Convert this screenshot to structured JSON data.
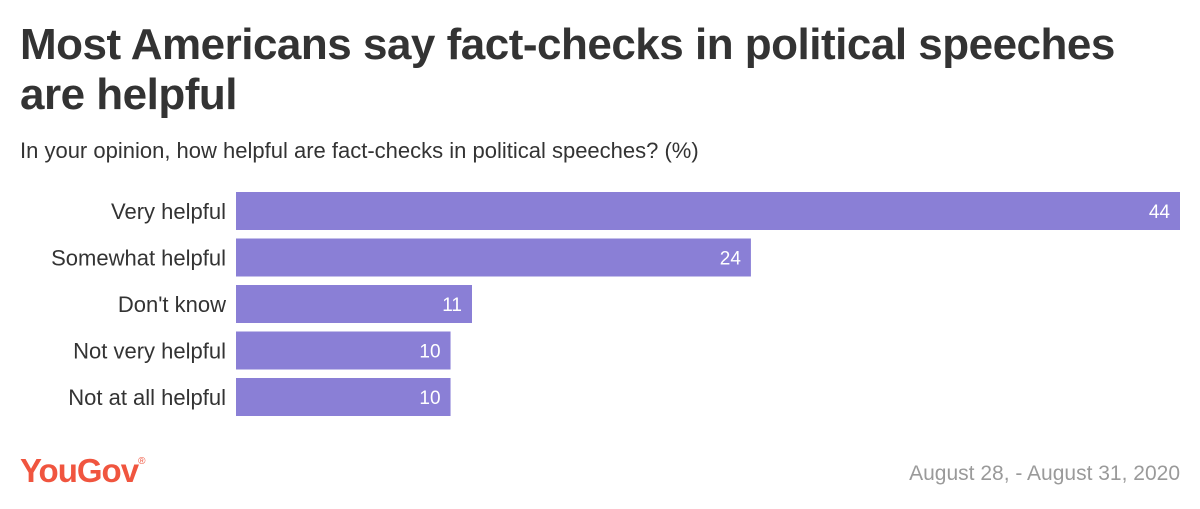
{
  "header": {
    "title": "Most Americans say fact-checks in political speeches are helpful",
    "subtitle": "In your opinion, how helpful are fact-checks in political speeches? (%)"
  },
  "footer": {
    "brand": "YouGov",
    "date": "August 28, - August 31, 2020"
  },
  "colors": {
    "bar": "#8a7fd6"
  },
  "chart_data": {
    "type": "bar",
    "orientation": "horizontal",
    "categories": [
      "Very helpful",
      "Somewhat helpful",
      "Don't know",
      "Not very helpful",
      "Not at all helpful"
    ],
    "values": [
      44,
      24,
      11,
      10,
      10
    ],
    "xlim": [
      0,
      44
    ],
    "grid": false,
    "legend": "none"
  }
}
